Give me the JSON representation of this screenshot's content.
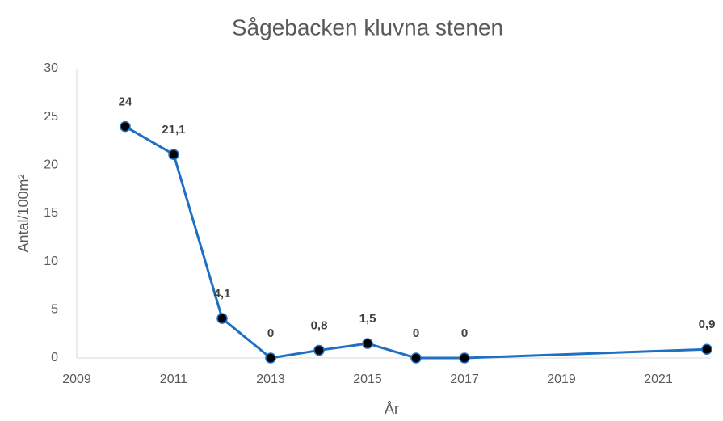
{
  "chart_data": {
    "type": "line",
    "title": "Sågebacken kluvna stenen",
    "x_label": "År",
    "y_label": "Antal/100m²",
    "x": [
      2010,
      2011,
      2012,
      2013,
      2014,
      2015,
      2016,
      2017,
      2022
    ],
    "series": [
      {
        "name": "Antal/100m²",
        "color": "#1f70c1",
        "values": [
          24,
          21.1,
          4.1,
          0,
          0.8,
          1.5,
          0,
          0,
          0.9
        ],
        "value_labels": [
          "24",
          "21,1",
          "4,1",
          "0",
          "0,8",
          "1,5",
          "0",
          "0",
          "0,9"
        ]
      }
    ],
    "xlim": [
      2009,
      2022
    ],
    "xticks": [
      2009,
      2011,
      2013,
      2015,
      2017,
      2019,
      2021
    ],
    "ylim": [
      0,
      30
    ],
    "yticks": [
      0,
      5,
      10,
      15,
      20,
      25,
      30
    ],
    "grid": false
  }
}
